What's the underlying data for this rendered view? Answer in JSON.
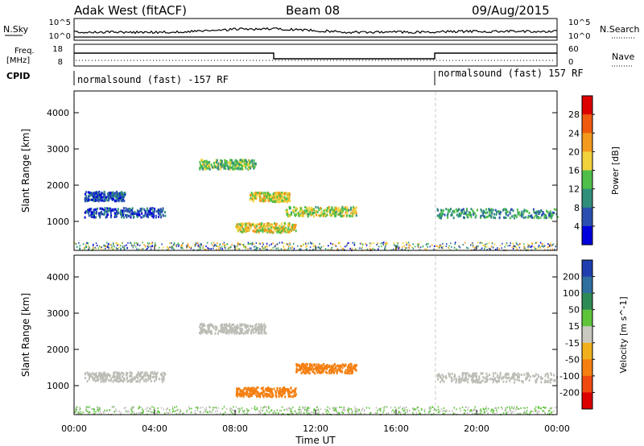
{
  "header": {
    "title_left": "Adak West (fitACF)",
    "title_center": "Beam 08",
    "title_right": "09/Aug/2015"
  },
  "status_panels": {
    "nsky": {
      "label": "N.Sky",
      "ticks": [
        "10^5",
        "10^0"
      ]
    },
    "nsearch": {
      "label": "N.Search",
      "ticks": [
        "10^5",
        "10^0"
      ]
    },
    "freq": {
      "label_line1": "Freq.",
      "label_line2": "[MHz]",
      "ticks": [
        "18",
        "8"
      ]
    },
    "nave": {
      "label": "Nave",
      "ticks": [
        "60",
        "0"
      ]
    },
    "cpid": {
      "label": "CPID",
      "entries": [
        "normalsound (fast) -157 RF",
        "normalsound (fast) 157 RF"
      ]
    }
  },
  "x_axis": {
    "label": "Time UT",
    "ticks": [
      "00:00",
      "04:00",
      "08:00",
      "12:00",
      "16:00",
      "20:00",
      "00:00"
    ]
  },
  "chart_data": [
    {
      "type": "heatmap",
      "title": "",
      "xlabel": "Time UT",
      "ylabel": "Slant Range [km]",
      "x_ticks": [
        "00:00",
        "04:00",
        "08:00",
        "12:00",
        "16:00",
        "20:00",
        "00:00"
      ],
      "y_ticks": [
        "1000",
        "2000",
        "3000",
        "4000"
      ],
      "xlim": [
        0,
        24
      ],
      "ylim": [
        200,
        4600
      ],
      "colorbar": {
        "label": "Power [dB]",
        "ticks": [
          "4",
          "8",
          "12",
          "16",
          "20",
          "24",
          "28"
        ],
        "range": [
          0,
          32
        ]
      },
      "features": [
        {
          "t": [
            0.5,
            2.5
          ],
          "range_km": 1720,
          "value": 6
        },
        {
          "t": [
            0.5,
            4.5
          ],
          "range_km": 1270,
          "value": 6
        },
        {
          "t": [
            6.2,
            9.0
          ],
          "range_km": 2600,
          "value": 14
        },
        {
          "t": [
            8.7,
            10.7
          ],
          "range_km": 1700,
          "value": 18
        },
        {
          "t": [
            8.0,
            11.0
          ],
          "range_km": 850,
          "value": 18
        },
        {
          "t": [
            10.5,
            14.0
          ],
          "range_km": 1300,
          "value": 16
        },
        {
          "t": [
            18.0,
            24.0
          ],
          "range_km": 1250,
          "value": 10
        }
      ]
    },
    {
      "type": "heatmap",
      "title": "",
      "xlabel": "Time UT",
      "ylabel": "Slant Range [km]",
      "x_ticks": [
        "00:00",
        "04:00",
        "08:00",
        "12:00",
        "16:00",
        "20:00",
        "00:00"
      ],
      "y_ticks": [
        "1000",
        "2000",
        "3000",
        "4000"
      ],
      "xlim": [
        0,
        24
      ],
      "ylim": [
        200,
        4600
      ],
      "colorbar": {
        "label": "Velocity [m s^-1]",
        "ticks": [
          "200",
          "100",
          "50",
          "15",
          "-15",
          "-50",
          "-100",
          "-200"
        ],
        "range": [
          -250,
          250
        ]
      },
      "features": [
        {
          "t": [
            0.5,
            4.5
          ],
          "range_km": 1270,
          "value": 0
        },
        {
          "t": [
            6.2,
            9.5
          ],
          "range_km": 2600,
          "value": 0
        },
        {
          "t": [
            8.0,
            11.0
          ],
          "range_km": 850,
          "value": -80
        },
        {
          "t": [
            11.0,
            14.0
          ],
          "range_km": 1500,
          "value": -70
        },
        {
          "t": [
            18.0,
            24.0
          ],
          "range_km": 1250,
          "value": 0
        }
      ]
    }
  ],
  "colors": {
    "power_scale": [
      "#0000dd",
      "#2a4fb0",
      "#2f8f7a",
      "#4fbf4a",
      "#f2d23a",
      "#f39a1c",
      "#ef5a10",
      "#dd0000"
    ],
    "velocity_scale": [
      "#1f3fb0",
      "#2f6fa0",
      "#2e8a55",
      "#5ec43a",
      "#c9c9c0",
      "#f1b11e",
      "#f57f10",
      "#f04a10",
      "#dd0000"
    ],
    "ground_scatter": "#bdbdb6"
  }
}
